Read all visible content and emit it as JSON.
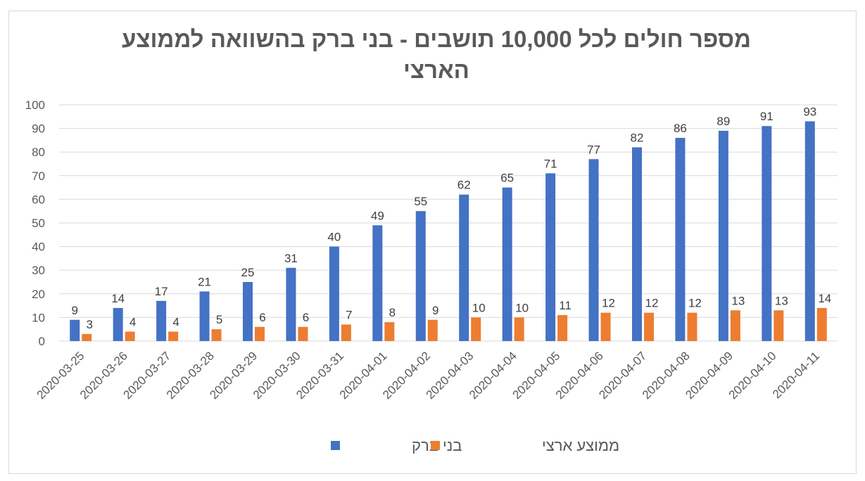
{
  "chart_data": {
    "type": "bar",
    "title": "מספר חולים לכל 10,000 תושבים - בני ברק בהשוואה לממוצע הארצי",
    "xlabel": "",
    "ylabel": "",
    "ylim": [
      0,
      100
    ],
    "yticks": [
      0,
      10,
      20,
      30,
      40,
      50,
      60,
      70,
      80,
      90,
      100
    ],
    "grid": true,
    "legend_position": "bottom",
    "categories": [
      "2020-03-25",
      "2020-03-26",
      "2020-03-27",
      "2020-03-28",
      "2020-03-29",
      "2020-03-30",
      "2020-03-31",
      "2020-04-01",
      "2020-04-02",
      "2020-04-03",
      "2020-04-04",
      "2020-04-05",
      "2020-04-06",
      "2020-04-07",
      "2020-04-08",
      "2020-04-09",
      "2020-04-10",
      "2020-04-11"
    ],
    "series": [
      {
        "name": "בני ברק",
        "color": "#4472c4",
        "values": [
          9,
          14,
          17,
          21,
          25,
          31,
          40,
          49,
          55,
          62,
          65,
          71,
          77,
          82,
          86,
          89,
          91,
          93
        ]
      },
      {
        "name": "ממוצע ארצי",
        "color": "#ed7d31",
        "values": [
          3,
          4,
          4,
          5,
          6,
          6,
          7,
          8,
          9,
          10,
          10,
          11,
          12,
          12,
          12,
          13,
          13,
          14
        ]
      }
    ]
  }
}
